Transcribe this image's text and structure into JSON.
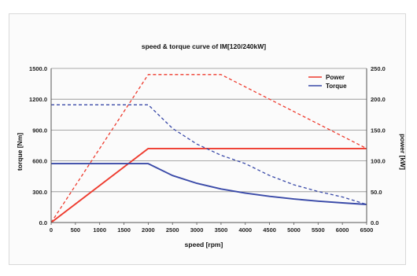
{
  "chart_data": {
    "type": "line",
    "title": "speed & torque curve of IM[120/240kW]",
    "xlabel": "speed [rpm]",
    "ylabel_left": "torque [Nm]",
    "ylabel_right": "power [kW]",
    "xlim": [
      0,
      6500
    ],
    "ylim_left": [
      0,
      1500
    ],
    "ylim_right": [
      0,
      250
    ],
    "x_ticks": [
      "0",
      "500",
      "1000",
      "1500",
      "2000",
      "2500",
      "3000",
      "3500",
      "4000",
      "4500",
      "5000",
      "5500",
      "6000",
      "6500"
    ],
    "y_left_ticks": [
      "0.0",
      "300.0",
      "600.0",
      "900.0",
      "1200.0",
      "1500.0"
    ],
    "y_right_ticks": [
      "0.0",
      "50.0",
      "100.0",
      "150.0",
      "200.0",
      "250.0"
    ],
    "grid": "horizontal",
    "legend_position": "top-right",
    "legend": [
      "Power",
      "Torque"
    ],
    "colors": {
      "power": "#ee3b2e",
      "torque": "#3a4aa8"
    },
    "series": [
      {
        "name": "Power",
        "axis": "right",
        "style": "solid",
        "x": [
          0,
          2000,
          6500
        ],
        "y": [
          0,
          120,
          120
        ]
      },
      {
        "name": "Power",
        "axis": "right",
        "style": "dashed",
        "x": [
          0,
          2000,
          3500,
          6500
        ],
        "y": [
          0,
          240,
          240,
          120
        ]
      },
      {
        "name": "Torque",
        "axis": "left",
        "style": "solid",
        "x": [
          0,
          2000,
          2500,
          3000,
          3500,
          4000,
          4500,
          5000,
          5500,
          6000,
          6500
        ],
        "y": [
          573,
          573,
          458,
          382,
          327,
          286,
          255,
          229,
          208,
          191,
          176
        ]
      },
      {
        "name": "Torque",
        "axis": "left",
        "style": "dashed",
        "x": [
          0,
          2000,
          2500,
          3000,
          3500,
          4000,
          4500,
          5000,
          5500,
          6000,
          6500
        ],
        "y": [
          1146,
          1146,
          917,
          764,
          655,
          573,
          458,
          367,
          302,
          249,
          176
        ]
      }
    ]
  }
}
